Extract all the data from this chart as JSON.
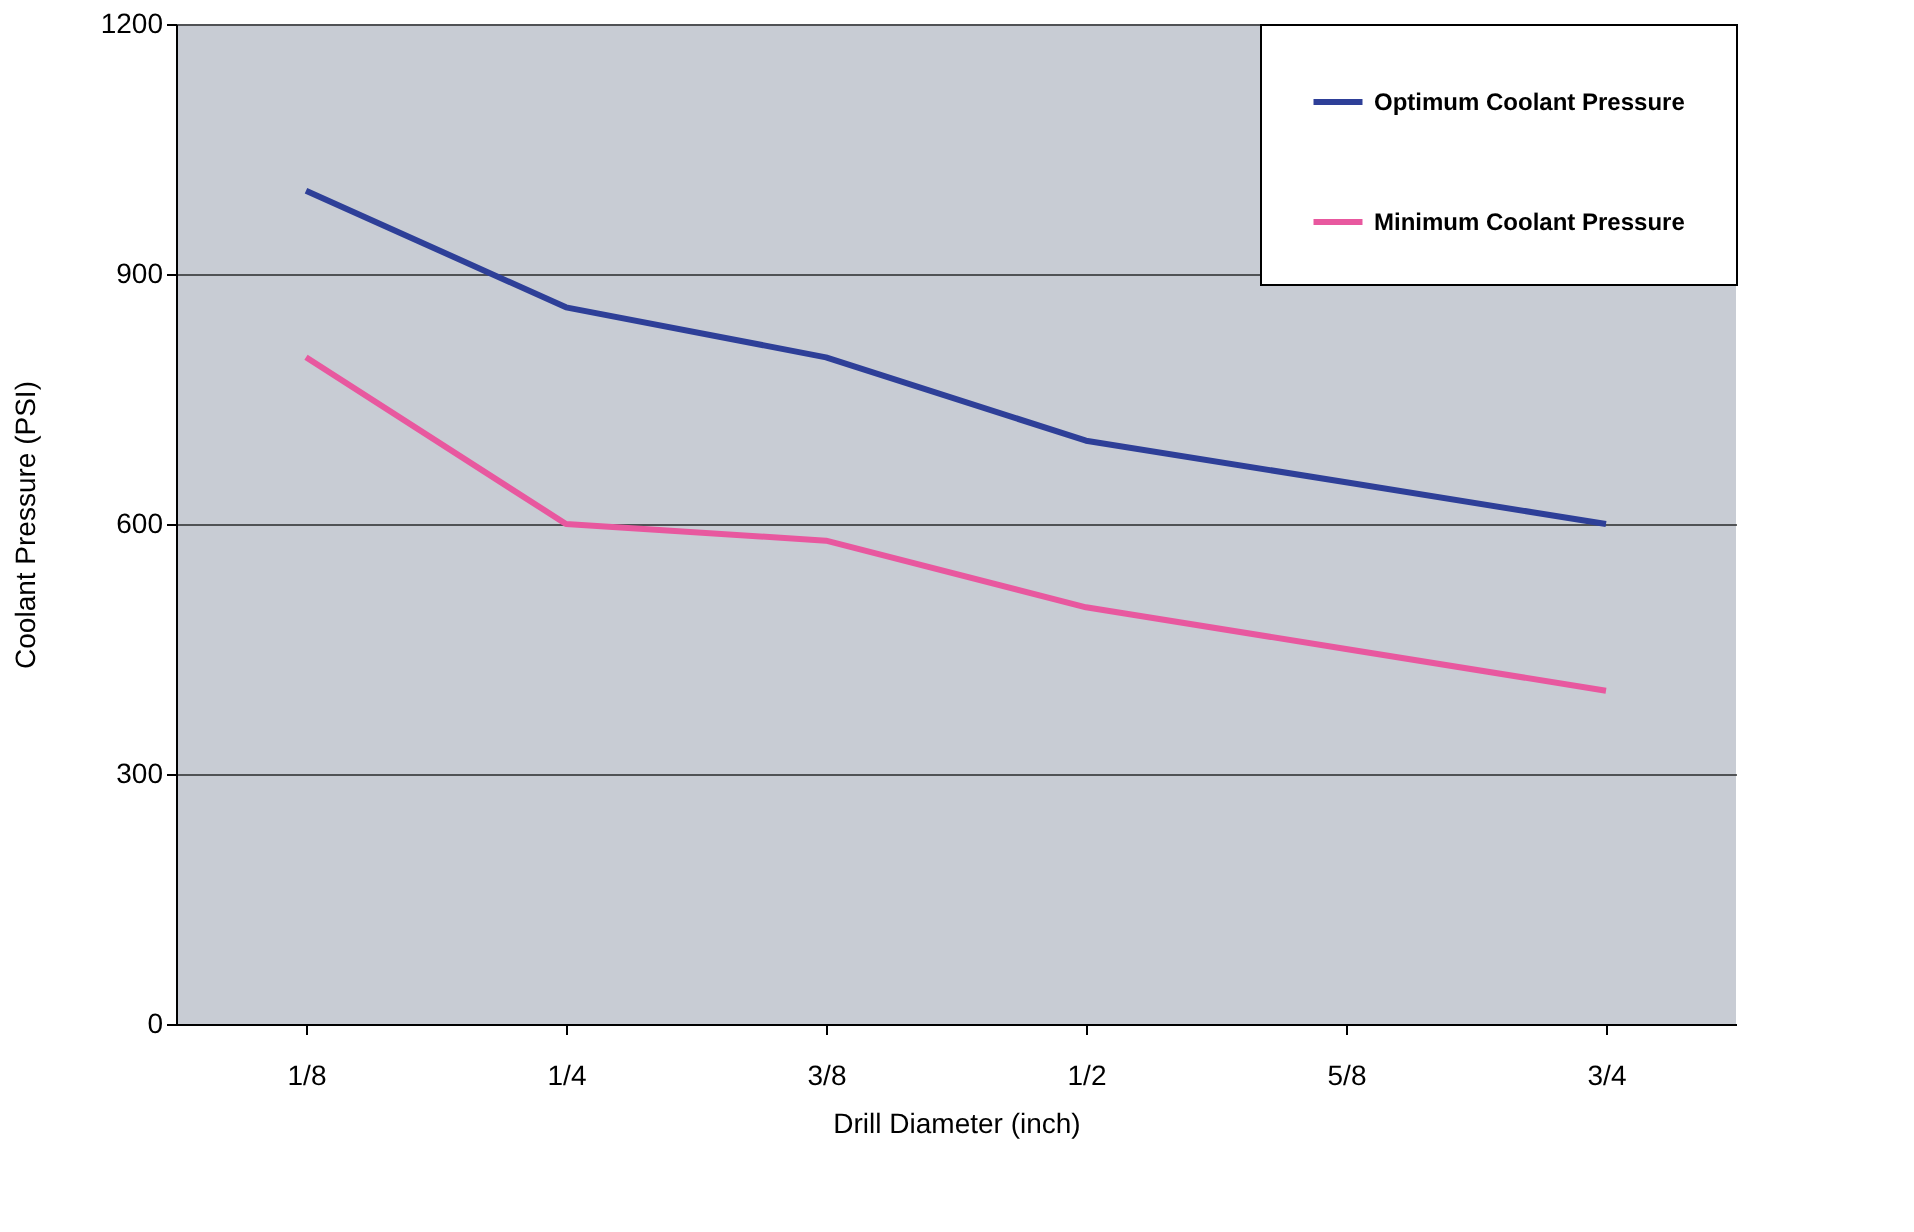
{
  "chart_data": {
    "type": "line",
    "xlabel": "Drill Diameter (inch)",
    "ylabel": "Coolant Pressure (PSI)",
    "categories": [
      "1/8",
      "1/4",
      "3/8",
      "1/2",
      "5/8",
      "3/4"
    ],
    "series": [
      {
        "name": "Optimum Coolant Pressure",
        "color": "#2e3f98",
        "values": [
          1000,
          860,
          800,
          700,
          650,
          600
        ]
      },
      {
        "name": "Minimum Coolant Pressure",
        "color": "#e8589f",
        "values": [
          800,
          600,
          580,
          500,
          450,
          400
        ]
      }
    ],
    "ylim": [
      0,
      1200
    ],
    "yticks": [
      0,
      300,
      600,
      900,
      1200
    ],
    "grid": "y",
    "legend": "top right",
    "marker": "none",
    "line_style": "solid"
  }
}
